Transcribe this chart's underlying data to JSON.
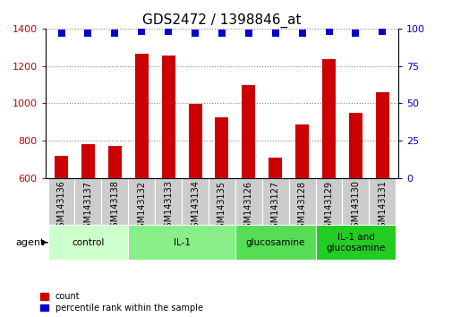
{
  "title": "GDS2472 / 1398846_at",
  "samples": [
    "GSM143136",
    "GSM143137",
    "GSM143138",
    "GSM143132",
    "GSM143133",
    "GSM143134",
    "GSM143135",
    "GSM143126",
    "GSM143127",
    "GSM143128",
    "GSM143129",
    "GSM143130",
    "GSM143131"
  ],
  "counts": [
    720,
    780,
    770,
    1265,
    1255,
    995,
    925,
    1100,
    710,
    885,
    1235,
    950,
    1060
  ],
  "percentile_values": [
    97,
    97,
    97,
    98,
    98,
    97,
    97,
    97,
    97,
    97,
    98,
    97,
    98
  ],
  "ylim_left": [
    600,
    1400
  ],
  "ylim_right": [
    0,
    100
  ],
  "yticks_left": [
    600,
    800,
    1000,
    1200,
    1400
  ],
  "yticks_right": [
    0,
    25,
    50,
    75,
    100
  ],
  "bar_color": "#cc0000",
  "dot_color": "#0000cc",
  "groups": [
    {
      "label": "control",
      "start": 0,
      "end": 3,
      "color": "#ccffcc"
    },
    {
      "label": "IL-1",
      "start": 3,
      "end": 7,
      "color": "#88ee88"
    },
    {
      "label": "glucosamine",
      "start": 7,
      "end": 10,
      "color": "#55dd55"
    },
    {
      "label": "IL-1 and\nglucosamine",
      "start": 10,
      "end": 13,
      "color": "#22cc22"
    }
  ],
  "tick_label_fontsize": 7,
  "title_fontsize": 11,
  "bar_width": 0.5,
  "dot_size": 36,
  "xtick_bg_color": "#cccccc",
  "legend_count_label": "count",
  "legend_pct_label": "percentile rank within the sample"
}
